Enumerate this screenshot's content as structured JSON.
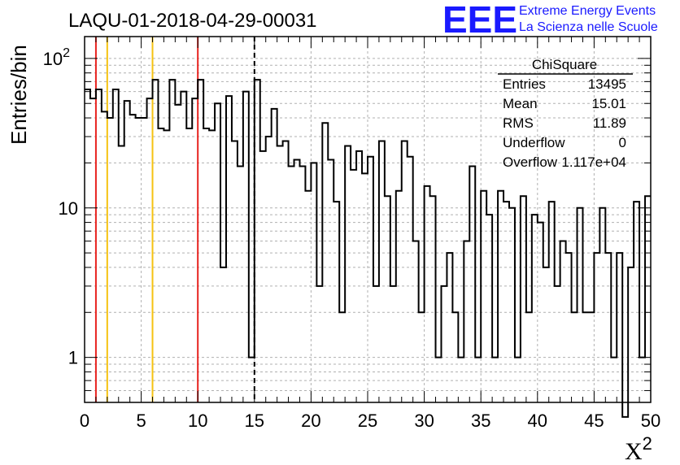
{
  "chart_data": {
    "type": "histogram",
    "title": "LAQU-01-2018-04-29-00031",
    "xlabel": "X",
    "xlabel_superscript": "2",
    "ylabel": "Entries/bin",
    "xlim": [
      0,
      50
    ],
    "ylim": [
      0.5,
      140
    ],
    "y_scale": "log",
    "grid": true,
    "bin_width": 0.5,
    "x_ticks": [
      "0",
      "5",
      "10",
      "15",
      "20",
      "25",
      "30",
      "35",
      "40",
      "45",
      "50"
    ],
    "y_ticks": [
      {
        "value": 1,
        "label": "1"
      },
      {
        "value": 10,
        "label": "10"
      },
      {
        "value": 100,
        "label": "10",
        "sup": "2"
      }
    ],
    "values": [
      62,
      54,
      62,
      44,
      40,
      62,
      26,
      52,
      42,
      40,
      40,
      54,
      72,
      34,
      33,
      72,
      49,
      60,
      34,
      54,
      72,
      34,
      33,
      50,
      4,
      56,
      28,
      19,
      60,
      1,
      72,
      24,
      30,
      46,
      26,
      28,
      19,
      21,
      19,
      13,
      20,
      3,
      37,
      21,
      11,
      2,
      26,
      18,
      24,
      17,
      22,
      3,
      28,
      12,
      3,
      13,
      28,
      22,
      6,
      2,
      14,
      12,
      1,
      3,
      5,
      2,
      1,
      6,
      19,
      1,
      13,
      9,
      1,
      13,
      11,
      10,
      1,
      12,
      2,
      9,
      8,
      4,
      11,
      3,
      6,
      5,
      2,
      10,
      2,
      2,
      5,
      10,
      5,
      1,
      5,
      0.4,
      4,
      11,
      1,
      12
    ],
    "vertical_lines": [
      {
        "x": 1,
        "color": "#e8231f",
        "style": "solid"
      },
      {
        "x": 2,
        "color": "#f5c211",
        "style": "solid"
      },
      {
        "x": 6,
        "color": "#f5c211",
        "style": "solid"
      },
      {
        "x": 10,
        "color": "#e8231f",
        "style": "solid"
      },
      {
        "x": 15,
        "color": "#000000",
        "style": "dashed"
      }
    ],
    "stats": {
      "title": "ChiSquare",
      "rows": [
        {
          "label": "Entries",
          "value": "13495"
        },
        {
          "label": "Mean",
          "value": "15.01"
        },
        {
          "label": "RMS",
          "value": "11.89"
        },
        {
          "label": "Underflow",
          "value": "0"
        },
        {
          "label": "Overflow",
          "value": "1.117e+04"
        }
      ]
    }
  },
  "brand": {
    "logo": "EEE",
    "line1": "Extreme Energy Events",
    "line2": "La Scienza nelle Scuole"
  }
}
